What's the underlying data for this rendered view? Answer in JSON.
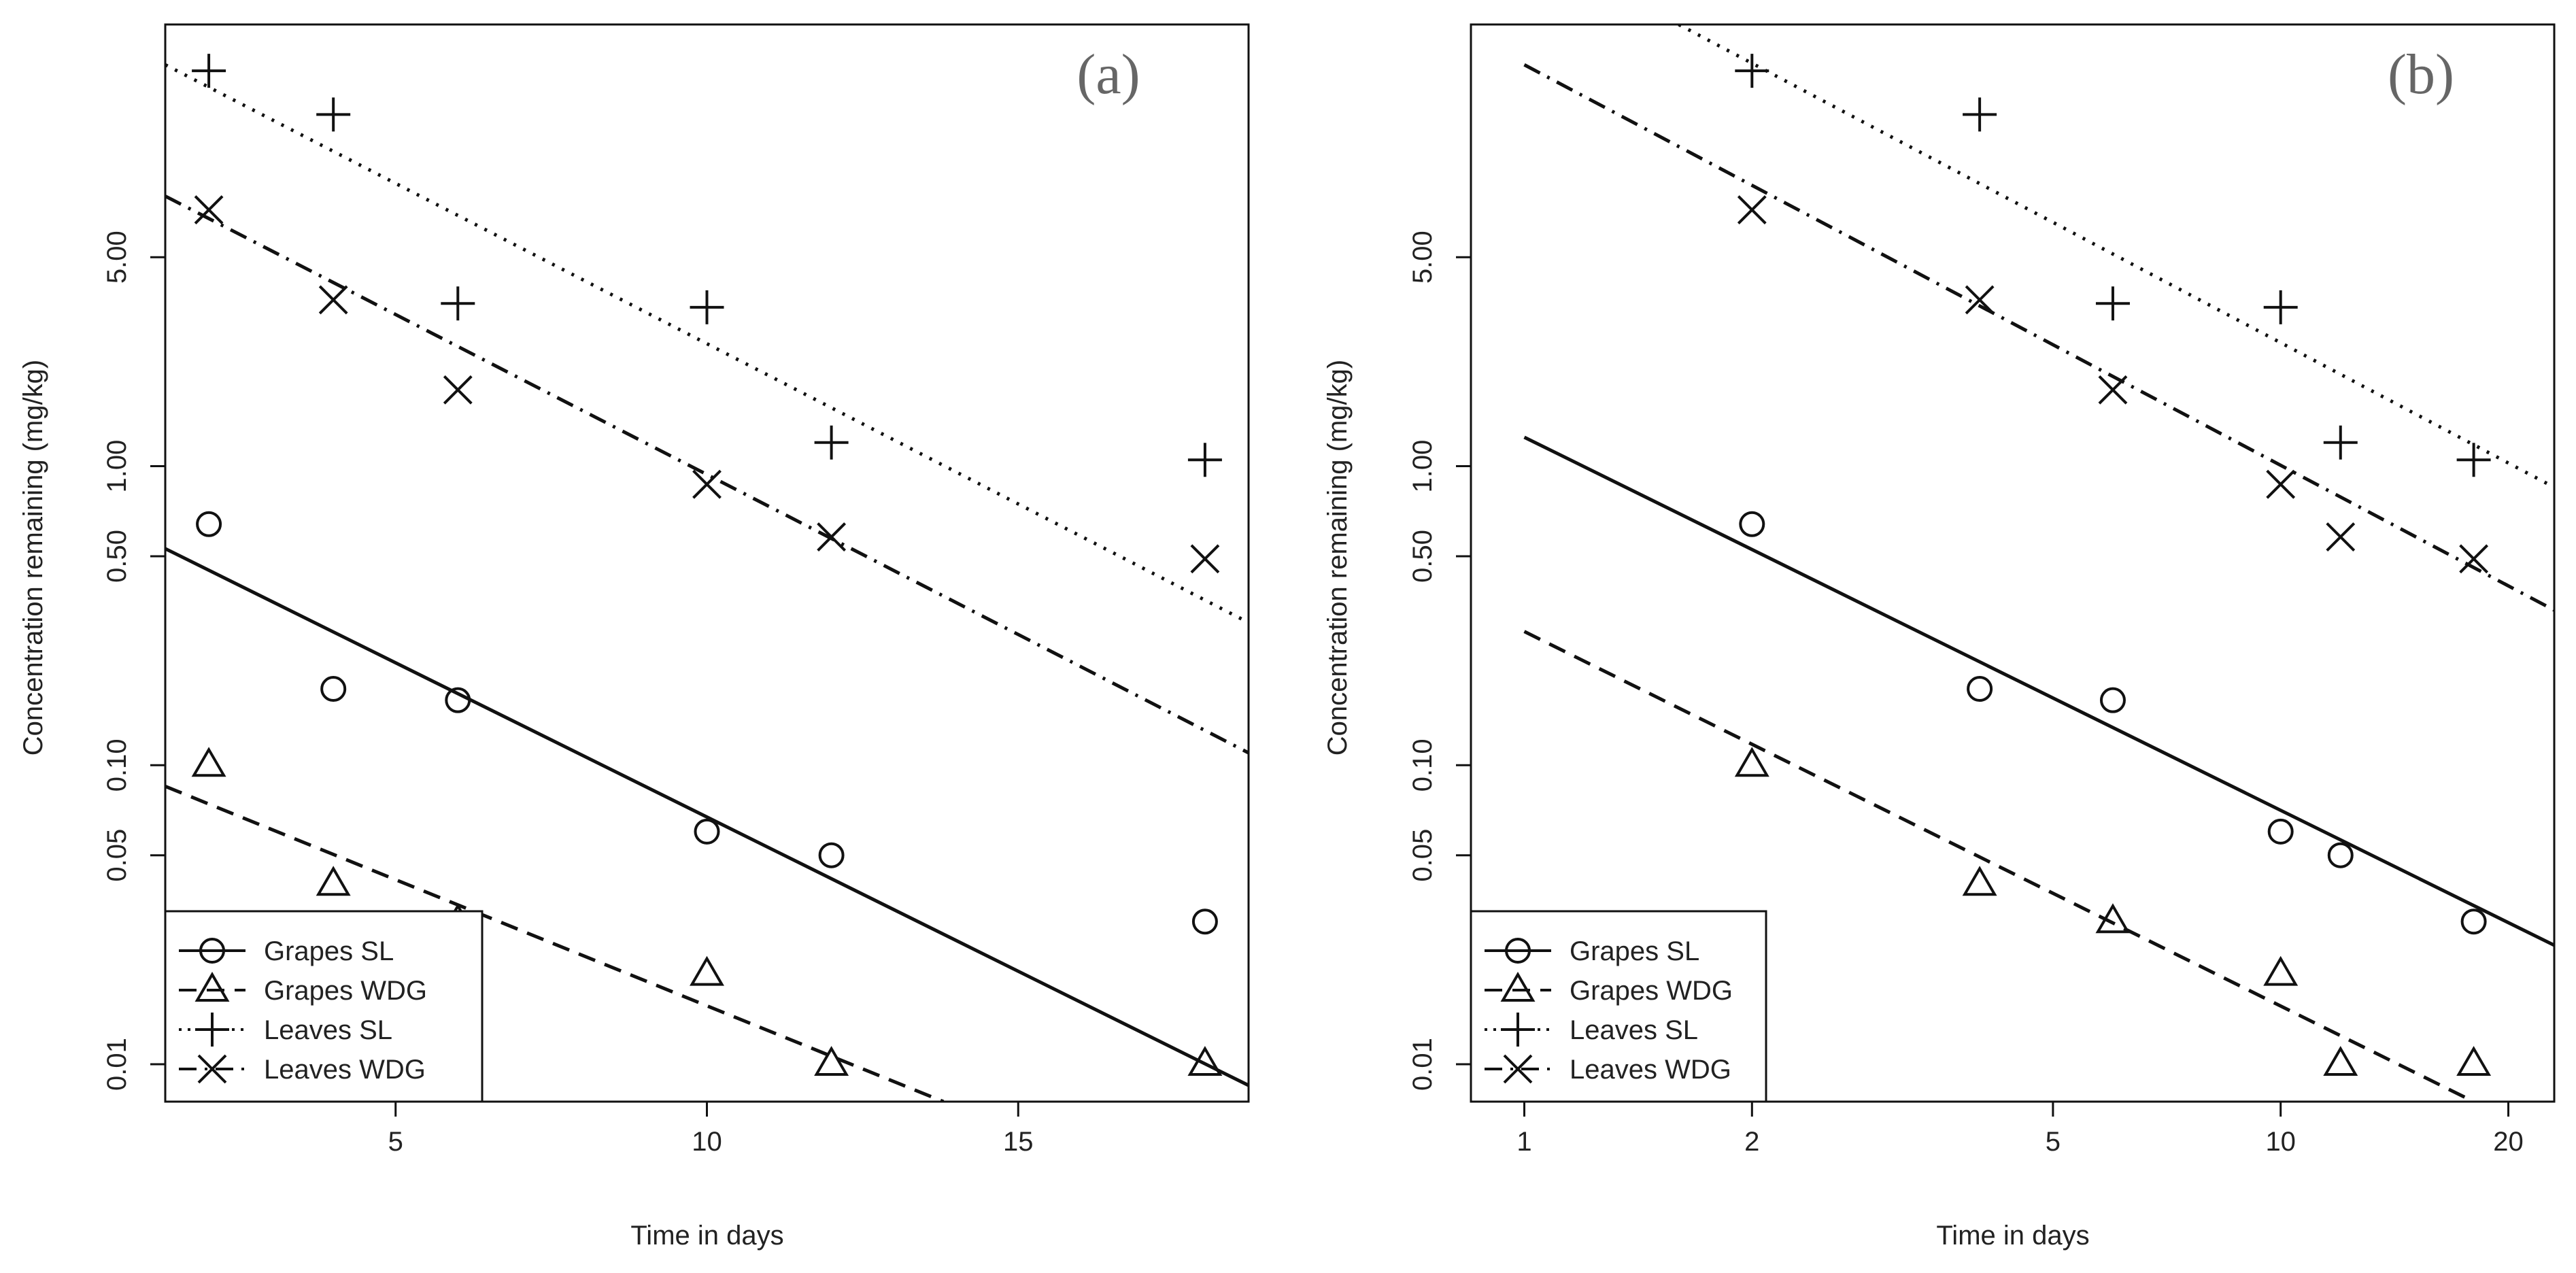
{
  "chart_data": [
    {
      "type": "scatter",
      "panel_label": "(a)",
      "xlabel": "Time in days",
      "ylabel": "Concentration remaining (mg/kg)",
      "x_scale": "linear",
      "y_scale": "log",
      "xlim": [
        1.3,
        18.7
      ],
      "ylim": [
        0.0075,
        30
      ],
      "x_ticks": [
        5,
        10,
        15
      ],
      "x_tick_labels": [
        "5",
        "10",
        "15"
      ],
      "y_ticks": [
        0.01,
        0.05,
        0.1,
        0.5,
        1,
        5
      ],
      "y_tick_labels": [
        "0.01",
        "0.05",
        "0.10",
        "0.50",
        "1.00",
        "5.00"
      ],
      "grid": false,
      "legend_position": "bottom-left",
      "series": [
        {
          "name": "Grapes SL",
          "marker": "circle",
          "line": "solid",
          "x": [
            2,
            4,
            6,
            10,
            12,
            18
          ],
          "y": [
            0.64,
            0.18,
            0.165,
            0.06,
            0.05,
            0.03
          ],
          "fit": [
            [
              1.3,
              0.53
            ],
            [
              18.7,
              0.0085
            ]
          ]
        },
        {
          "name": "Grapes WDG",
          "marker": "triangle",
          "line": "dashed",
          "x": [
            2,
            4,
            6,
            10,
            12,
            18
          ],
          "y": [
            0.1,
            0.04,
            0.03,
            0.02,
            0.01,
            0.01
          ],
          "fit": [
            [
              1.3,
              0.085
            ],
            [
              13.8,
              0.0075
            ]
          ]
        },
        {
          "name": "Leaves SL",
          "marker": "plus",
          "line": "dotted",
          "x": [
            2,
            4,
            6,
            10,
            12,
            18
          ],
          "y": [
            21,
            15,
            3.5,
            3.4,
            1.2,
            1.05
          ],
          "fit": [
            [
              1.3,
              22
            ],
            [
              18.7,
              0.3
            ]
          ]
        },
        {
          "name": "Leaves WDG",
          "marker": "cross",
          "line": "dashdot",
          "x": [
            2,
            4,
            6,
            10,
            12,
            18
          ],
          "y": [
            7.2,
            3.6,
            1.8,
            0.87,
            0.58,
            0.49
          ],
          "fit": [
            [
              1.3,
              8
            ],
            [
              18.7,
              0.11
            ]
          ]
        }
      ]
    },
    {
      "type": "scatter",
      "panel_label": "(b)",
      "xlabel": "Time in days",
      "ylabel": "Concentration remaining (mg/kg)",
      "x_scale": "log",
      "y_scale": "log",
      "xlim": [
        0.85,
        23
      ],
      "ylim": [
        0.0075,
        30
      ],
      "x_ticks": [
        1,
        2,
        5,
        10,
        20
      ],
      "x_tick_labels": [
        "1",
        "2",
        "5",
        "10",
        "20"
      ],
      "y_ticks": [
        0.01,
        0.05,
        0.1,
        0.5,
        1,
        5
      ],
      "y_tick_labels": [
        "0.01",
        "0.05",
        "0.10",
        "0.50",
        "1.00",
        "5.00"
      ],
      "grid": false,
      "legend_position": "bottom-left",
      "series": [
        {
          "name": "Grapes SL",
          "marker": "circle",
          "line": "solid",
          "x": [
            2,
            4,
            6,
            10,
            12,
            18
          ],
          "y": [
            0.64,
            0.18,
            0.165,
            0.06,
            0.05,
            0.03
          ],
          "fit": [
            [
              1,
              1.25
            ],
            [
              23,
              0.025
            ]
          ]
        },
        {
          "name": "Grapes WDG",
          "marker": "triangle",
          "line": "dashed",
          "x": [
            2,
            4,
            6,
            10,
            12,
            18
          ],
          "y": [
            0.1,
            0.04,
            0.03,
            0.02,
            0.01,
            0.01
          ],
          "fit": [
            [
              1,
              0.28
            ],
            [
              18,
              0.0075
            ]
          ]
        },
        {
          "name": "Leaves SL",
          "marker": "plus",
          "line": "dotted",
          "x": [
            2,
            4,
            6,
            10,
            12,
            18
          ],
          "y": [
            21,
            15,
            3.5,
            3.4,
            1.2,
            1.05
          ],
          "fit": [
            [
              1.6,
              30
            ],
            [
              23,
              0.85
            ]
          ]
        },
        {
          "name": "Leaves WDG",
          "marker": "cross",
          "line": "dashdot",
          "x": [
            2,
            4,
            6,
            10,
            12,
            18
          ],
          "y": [
            7.2,
            3.6,
            1.8,
            0.87,
            0.58,
            0.49
          ],
          "fit": [
            [
              1,
              22
            ],
            [
              23,
              0.33
            ]
          ]
        }
      ]
    }
  ]
}
